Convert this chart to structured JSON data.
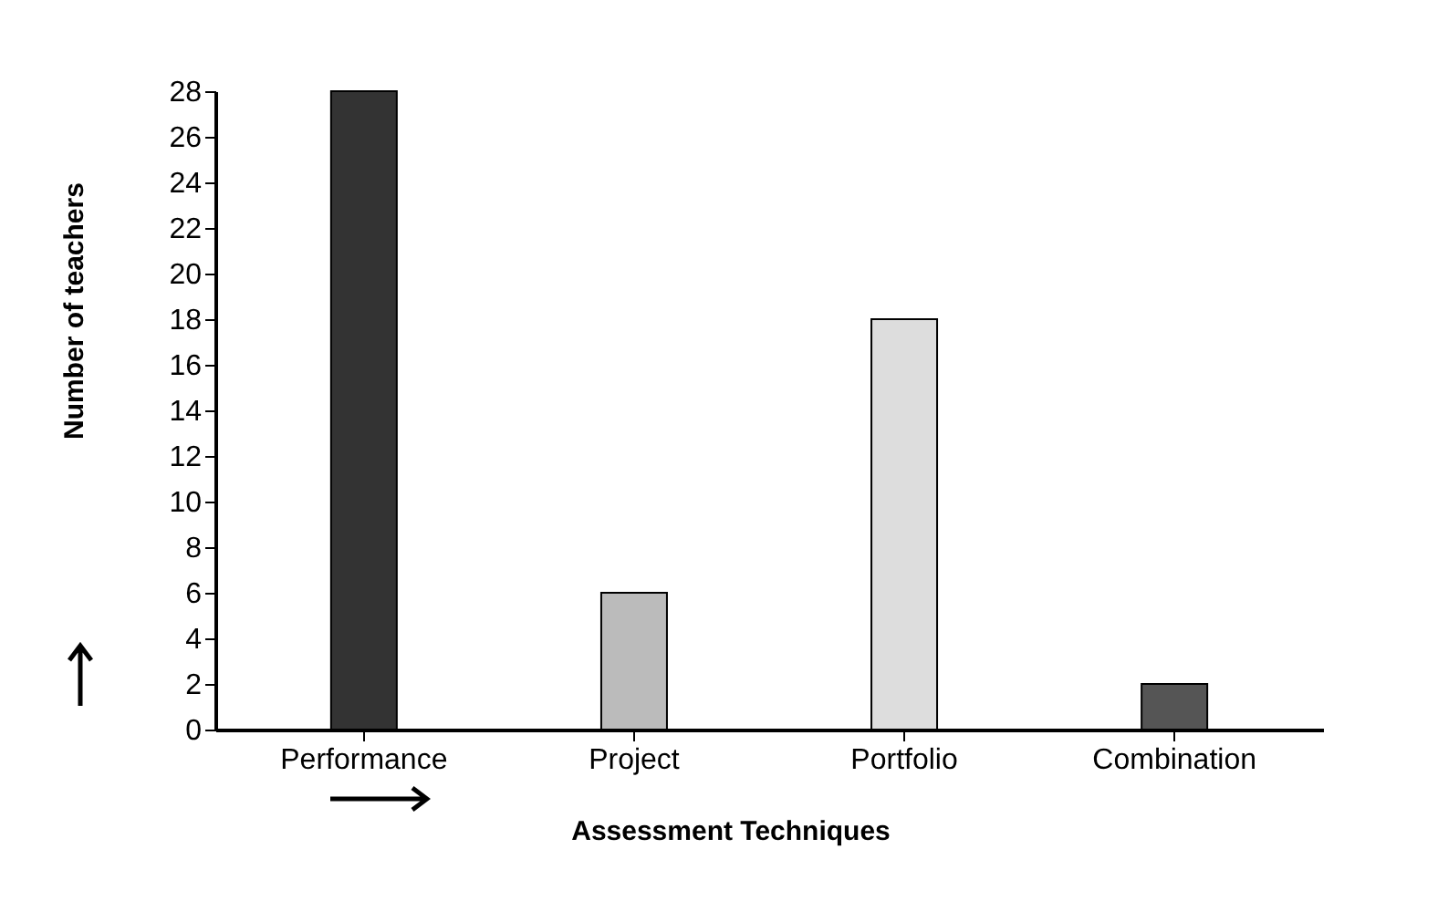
{
  "chart_data": {
    "type": "bar",
    "xlabel": "Assessment Techniques",
    "ylabel": "Number of teachers",
    "categories": [
      "Performance",
      "Project",
      "Portfolio",
      "Combination"
    ],
    "values": [
      28,
      6,
      18,
      2
    ],
    "colors": [
      "#333333",
      "#bbbbbb",
      "#dddddd",
      "#555555"
    ],
    "ylim": [
      0,
      28
    ],
    "yticks": [
      0,
      2,
      4,
      6,
      8,
      10,
      12,
      14,
      16,
      18,
      20,
      22,
      24,
      26,
      28
    ],
    "grid": false,
    "legend": false
  }
}
